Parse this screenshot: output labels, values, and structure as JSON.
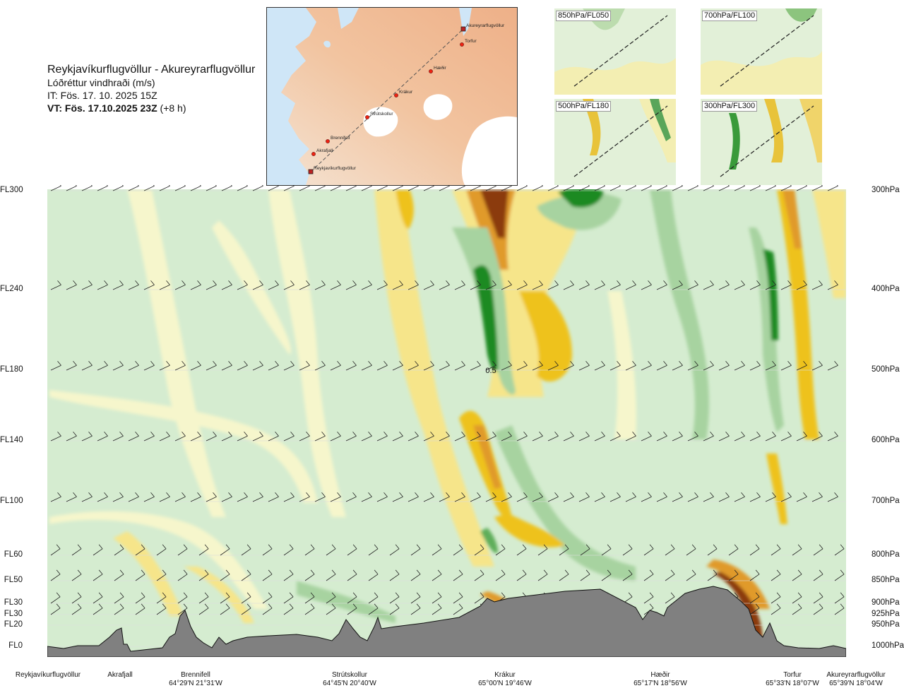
{
  "title": {
    "route": "Reykjavíkurflugvöllur - Akureyrarflugvöllur",
    "variable": "Lóðréttur vindhraði (m/s)",
    "issue": "IT: Fös. 17. 10. 2025 15Z",
    "valid": "VT: Fös. 17.10.2025 23Z",
    "lead": "(+8 h)"
  },
  "map": {
    "points": [
      "Akureyrarflugvöllur",
      "Torfur",
      "Hæðir",
      "Krákur",
      "Strútskollur",
      "Brennifell",
      "Akrafjall",
      "Reykjavíkurflugvöllur"
    ]
  },
  "thumbnails": [
    {
      "label": "850hPa/FL050"
    },
    {
      "label": "700hPa/FL100"
    },
    {
      "label": "500hPa/FL180"
    },
    {
      "label": "300hPa/FL300"
    }
  ],
  "levels": [
    {
      "fl": "FL300",
      "pa": "300hPa"
    },
    {
      "fl": "FL240",
      "pa": "400hPa"
    },
    {
      "fl": "FL180",
      "pa": "500hPa"
    },
    {
      "fl": "FL140",
      "pa": "600hPa"
    },
    {
      "fl": "FL100",
      "pa": "700hPa"
    },
    {
      "fl": "FL60",
      "pa": "800hPa"
    },
    {
      "fl": "FL50",
      "pa": "850hPa"
    },
    {
      "fl": "FL30",
      "pa": "900hPa"
    },
    {
      "fl": "FL30",
      "pa": "925hPa"
    },
    {
      "fl": "FL20",
      "pa": "950hPa"
    },
    {
      "fl": "FL0",
      "pa": "1000hPa"
    }
  ],
  "waypoints": [
    {
      "name": "Reykjavíkurflugvöllur",
      "coord": ""
    },
    {
      "name": "Akrafjall",
      "coord": ""
    },
    {
      "name": "Brennifell",
      "coord": "64°29'N 21°31'W"
    },
    {
      "name": "Strútskollur",
      "coord": "64°45'N 20°40'W"
    },
    {
      "name": "Krákur",
      "coord": "65°00'N 19°46'W"
    },
    {
      "name": "Hæðir",
      "coord": "65°17'N 18°56'W"
    },
    {
      "name": "Torfur",
      "coord": "65°33'N 18°07'W"
    },
    {
      "name": "Akureyrarflugvöllur",
      "coord": "65°39'N 18°04'W"
    }
  ],
  "annotation": "0.5",
  "colors": {
    "strong_down": "#8b3a10",
    "mod_down": "#e09a2a",
    "down": "#eec21e",
    "weak_down": "#f6e58a",
    "neutral": "#f6f6cc",
    "weak_up": "#d5ecd0",
    "up": "#a7d3a0",
    "mod_up": "#5fae5a",
    "strong_up": "#1e8a23",
    "terrain": "#808080"
  },
  "chart_data": {
    "type": "heatmap",
    "title": "Reykjavíkurflugvöllur - Akureyrarflugvöllur",
    "variable": "Lóðréttur vindhraði (m/s)",
    "y_levels_hPa": [
      300,
      400,
      500,
      600,
      700,
      800,
      850,
      900,
      925,
      950,
      1000
    ],
    "y_levels_FL": [
      "FL300",
      "FL240",
      "FL180",
      "FL140",
      "FL100",
      "FL60",
      "FL50",
      "FL30",
      "FL30",
      "FL20",
      "FL0"
    ],
    "x_points": [
      "Reykjavíkurflugvöllur",
      "Akrafjall",
      "Brennifell",
      "Strútskollur",
      "Krákur",
      "Hæðir",
      "Torfur",
      "Akureyrarflugvöllur"
    ],
    "features": [
      {
        "kind": "downdraft",
        "near": "Krákur",
        "levels": "300-400hPa",
        "strength": "strong"
      },
      {
        "kind": "updraft",
        "near": "Krákur",
        "levels": "400-550hPa",
        "label": "0.5"
      },
      {
        "kind": "downdraft",
        "near": "Krákur",
        "levels": "550-750hPa",
        "strength": "moderate"
      },
      {
        "kind": "downdraft",
        "near": "Torfur",
        "levels": "300-400hPa",
        "strength": "moderate"
      },
      {
        "kind": "updraft",
        "near": "Torfur",
        "levels": "350-500hPa",
        "strength": "moderate"
      },
      {
        "kind": "downdraft",
        "near": "Hæðir-Torfur ridge",
        "levels": "850-950hPa",
        "strength": "strong"
      }
    ],
    "legend": "none",
    "grid": false
  }
}
